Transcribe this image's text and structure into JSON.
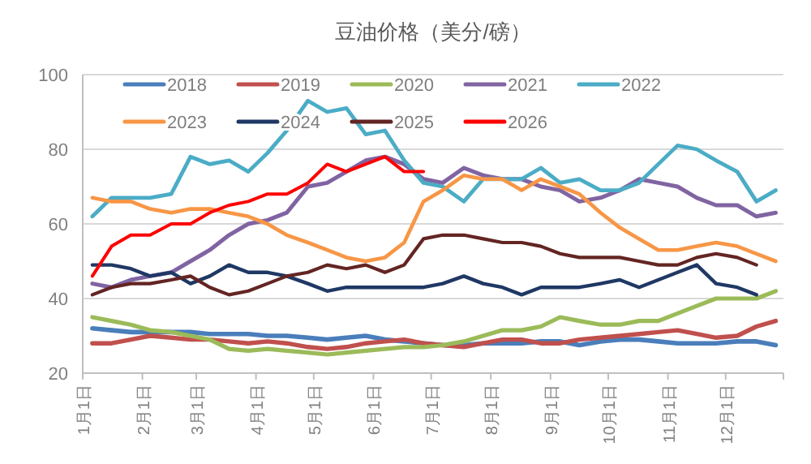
{
  "chart_data": {
    "type": "line",
    "title": "豆油价格（美分/磅）",
    "grid": "y",
    "legend": "top",
    "x": [
      "--01-06",
      "--01-16",
      "--01-26",
      "--02-05",
      "--02-16",
      "--02-26",
      "--03-08",
      "--03-18",
      "--03-28",
      "--04-07",
      "--04-17",
      "--04-28",
      "--05-08",
      "--05-18",
      "--05-28",
      "--06-07",
      "--06-17",
      "--06-27",
      "--07-07",
      "--07-18",
      "--07-28",
      "--08-07",
      "--08-17",
      "--08-27",
      "--09-06",
      "--09-16",
      "--09-27",
      "--10-07",
      "--10-17",
      "--10-27",
      "--11-06",
      "--11-16",
      "--11-26",
      "--12-07",
      "--12-17",
      "--12-27"
    ],
    "xlim": [
      "--01-01",
      "--12-31"
    ],
    "xticks": [
      {
        "value": "--01-01",
        "label": "1月1日"
      },
      {
        "value": "--02-01",
        "label": "2月1日"
      },
      {
        "value": "--03-01",
        "label": "3月1日"
      },
      {
        "value": "--04-01",
        "label": "4月1日"
      },
      {
        "value": "--05-01",
        "label": "5月1日"
      },
      {
        "value": "--06-01",
        "label": "6月1日"
      },
      {
        "value": "--07-01",
        "label": "7月1日"
      },
      {
        "value": "--08-01",
        "label": "8月1日"
      },
      {
        "value": "--09-01",
        "label": "9月1日"
      },
      {
        "value": "--10-01",
        "label": "10月1日"
      },
      {
        "value": "--11-01",
        "label": "11月1日"
      },
      {
        "value": "--12-01",
        "label": "12月1日"
      },
      {
        "value": "--12-31",
        "label": null
      }
    ],
    "ylim": [
      20,
      100
    ],
    "yticks": [
      20,
      40,
      60,
      80,
      100
    ],
    "series": [
      {
        "name": "2018",
        "color": "#4a7ebb",
        "values": [
          32,
          31.5,
          31,
          31,
          31,
          31,
          30.5,
          30.5,
          30.5,
          30,
          30,
          29.5,
          29,
          29.5,
          30,
          29,
          28.5,
          28,
          27.5,
          27.5,
          28,
          28,
          28,
          28.5,
          28.5,
          27.5,
          28.5,
          29,
          29,
          28.5,
          28,
          28,
          28,
          28.5,
          28.5,
          27.5
        ]
      },
      {
        "name": "2019",
        "color": "#c0504d",
        "values": [
          28,
          28,
          29,
          30,
          29.5,
          29,
          29,
          28.5,
          28,
          28.5,
          28,
          27,
          26.5,
          27,
          28,
          28.5,
          29,
          28,
          27.5,
          27,
          28,
          29,
          29,
          28,
          28,
          29,
          29.5,
          30,
          30.5,
          31,
          31.5,
          30.5,
          29.5,
          30,
          32.5,
          34
        ]
      },
      {
        "name": "2020",
        "color": "#9bbb59",
        "values": [
          35,
          34,
          33,
          31.5,
          31,
          30,
          29,
          26.5,
          26,
          26.5,
          26,
          25.5,
          25,
          25.5,
          26,
          26.5,
          27,
          27,
          27.5,
          28.5,
          30,
          31.5,
          31.5,
          32.5,
          35,
          34,
          33,
          33,
          34,
          34,
          36,
          38,
          40,
          40,
          40,
          42
        ]
      },
      {
        "name": "2021",
        "color": "#8064a2",
        "values": [
          44,
          43,
          45,
          46,
          47,
          50,
          53,
          57,
          60,
          61,
          63,
          70,
          71,
          74,
          77,
          78,
          76,
          72,
          71,
          75,
          73,
          72,
          72,
          70,
          69,
          66,
          67,
          69,
          72,
          71,
          70,
          67,
          65,
          65,
          62,
          63
        ]
      },
      {
        "name": "2022",
        "color": "#4bacc6",
        "values": [
          62,
          67,
          67,
          67,
          68,
          78,
          76,
          77,
          74,
          79,
          85,
          93,
          90,
          91,
          84,
          85,
          77,
          71,
          70,
          66,
          72,
          72,
          72,
          75,
          71,
          72,
          69,
          69,
          71,
          76,
          81,
          80,
          77,
          74,
          66,
          69
        ]
      },
      {
        "name": "2023",
        "color": "#f79646",
        "values": [
          67,
          66,
          66,
          64,
          63,
          64,
          64,
          63,
          62,
          60,
          57,
          55,
          53,
          51,
          50,
          51,
          55,
          66,
          69,
          73,
          72,
          72,
          69,
          72,
          70,
          68,
          63,
          59,
          56,
          53,
          53,
          54,
          55,
          54,
          52,
          50
        ]
      },
      {
        "name": "2024",
        "color": "#1f3864",
        "values": [
          49,
          49,
          48,
          46,
          47,
          44,
          46,
          49,
          47,
          47,
          46,
          44,
          42,
          43,
          43,
          43,
          43,
          43,
          44,
          46,
          44,
          43,
          41,
          43,
          43,
          43,
          44,
          45,
          43,
          45,
          47,
          49,
          44,
          43,
          41,
          null
        ]
      },
      {
        "name": "2025",
        "color": "#632523",
        "values": [
          41,
          43,
          44,
          44,
          45,
          46,
          43,
          41,
          42,
          44,
          46,
          47,
          49,
          48,
          49,
          47,
          49,
          56,
          57,
          57,
          56,
          55,
          55,
          54,
          52,
          51,
          51,
          51,
          50,
          49,
          49,
          51,
          52,
          51,
          49,
          null
        ]
      },
      {
        "name": "2026",
        "color": "#ff0000",
        "values": [
          46,
          54,
          57,
          57,
          60,
          60,
          63,
          65,
          66,
          68,
          68,
          71,
          76,
          74,
          76,
          78,
          74,
          74,
          null,
          null,
          null,
          null,
          null,
          null,
          null,
          null,
          null,
          null,
          null,
          null,
          null,
          null,
          null,
          null,
          null,
          null
        ]
      }
    ]
  }
}
